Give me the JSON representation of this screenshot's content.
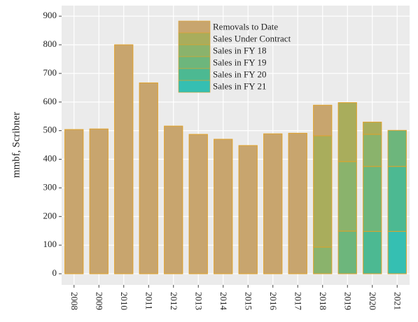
{
  "chart_data": {
    "type": "stacked-bar",
    "y_label": "mmbf, Scribner",
    "categories": [
      "2008",
      "2009",
      "2010",
      "2011",
      "2012",
      "2013",
      "2014",
      "2015",
      "2016",
      "2017",
      "2018",
      "2019",
      "2020",
      "2021"
    ],
    "series": [
      {
        "name": "Removals to Date",
        "color": "#c8a56e",
        "values": [
          504,
          506,
          800,
          667,
          516,
          487,
          470,
          448,
          489,
          491,
          107,
          null,
          null,
          null
        ]
      },
      {
        "name": "Sales Under Contract",
        "color": "#a9ad5c",
        "values": [
          null,
          null,
          null,
          null,
          null,
          null,
          null,
          null,
          null,
          null,
          389,
          206,
          43,
          null
        ]
      },
      {
        "name": "Sales in FY 18",
        "color": "#8ab36c",
        "values": [
          null,
          null,
          null,
          null,
          null,
          null,
          null,
          null,
          null,
          null,
          93,
          243,
          112,
          null
        ]
      },
      {
        "name": "Sales in FY 19",
        "color": "#6db67c",
        "values": [
          null,
          null,
          null,
          null,
          null,
          null,
          null,
          null,
          null,
          null,
          null,
          149,
          227,
          126
        ]
      },
      {
        "name": "Sales in FY 20",
        "color": "#4cb992",
        "values": [
          null,
          null,
          null,
          null,
          null,
          null,
          null,
          null,
          null,
          null,
          null,
          null,
          148,
          227
        ]
      },
      {
        "name": "Sales in FY 21",
        "color": "#35bfb2",
        "values": [
          null,
          null,
          null,
          null,
          null,
          null,
          null,
          null,
          null,
          null,
          null,
          null,
          null,
          148
        ]
      }
    ],
    "ylim": [
      -39,
      937
    ],
    "yticks": [
      0,
      100,
      200,
      300,
      400,
      500,
      600,
      700,
      800,
      900
    ],
    "grid": true,
    "legend": "top",
    "bar_outline": "#e0a22a"
  }
}
